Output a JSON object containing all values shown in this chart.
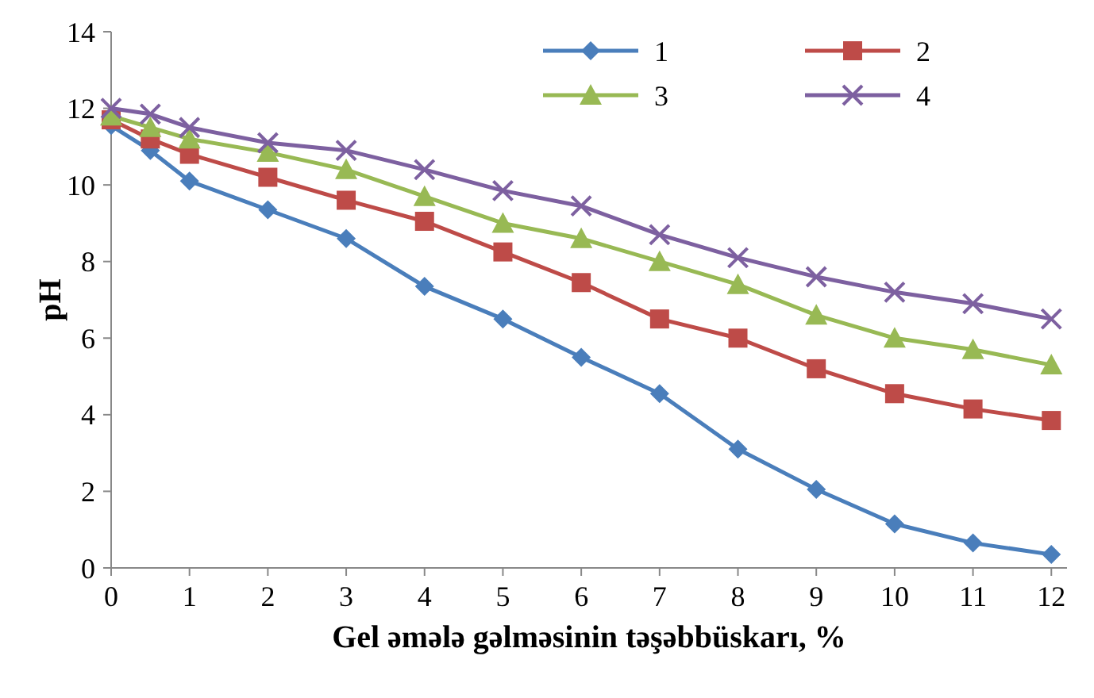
{
  "chart_data": {
    "type": "line",
    "xlabel": "Gel əmələ gəlməsinin təşəbbüskarı, %",
    "ylabel": "pH",
    "x": [
      0,
      0.5,
      1,
      2,
      3,
      4,
      5,
      6,
      7,
      8,
      9,
      10,
      11,
      12
    ],
    "xlim": [
      0,
      12.2
    ],
    "xticks": [
      0,
      1,
      2,
      3,
      4,
      5,
      6,
      7,
      8,
      9,
      10,
      11,
      12
    ],
    "ylim": [
      0,
      14
    ],
    "yticks": [
      0,
      2,
      4,
      6,
      8,
      10,
      12,
      14
    ],
    "grid": false,
    "legend": "top right",
    "series": [
      {
        "name": "1",
        "color": "#4a7ebb",
        "marker": "diamond",
        "values": [
          11.55,
          10.9,
          10.1,
          9.35,
          8.6,
          7.35,
          6.5,
          5.5,
          4.55,
          3.1,
          2.05,
          1.15,
          0.65,
          0.35
        ]
      },
      {
        "name": "2",
        "color": "#be4b48",
        "marker": "square",
        "values": [
          11.7,
          11.2,
          10.8,
          10.2,
          9.6,
          9.05,
          8.25,
          7.45,
          6.5,
          6.0,
          5.2,
          4.55,
          4.15,
          3.85
        ]
      },
      {
        "name": "3",
        "color": "#98b954",
        "marker": "triangle",
        "values": [
          11.8,
          11.5,
          11.2,
          10.85,
          10.4,
          9.7,
          9.0,
          8.6,
          8.0,
          7.4,
          6.6,
          6.0,
          5.7,
          5.3
        ]
      },
      {
        "name": "4",
        "color": "#7d60a0",
        "marker": "cross",
        "values": [
          12.0,
          11.85,
          11.5,
          11.1,
          10.9,
          10.4,
          9.85,
          9.45,
          8.7,
          8.1,
          7.6,
          7.2,
          6.9,
          6.5
        ]
      }
    ]
  }
}
